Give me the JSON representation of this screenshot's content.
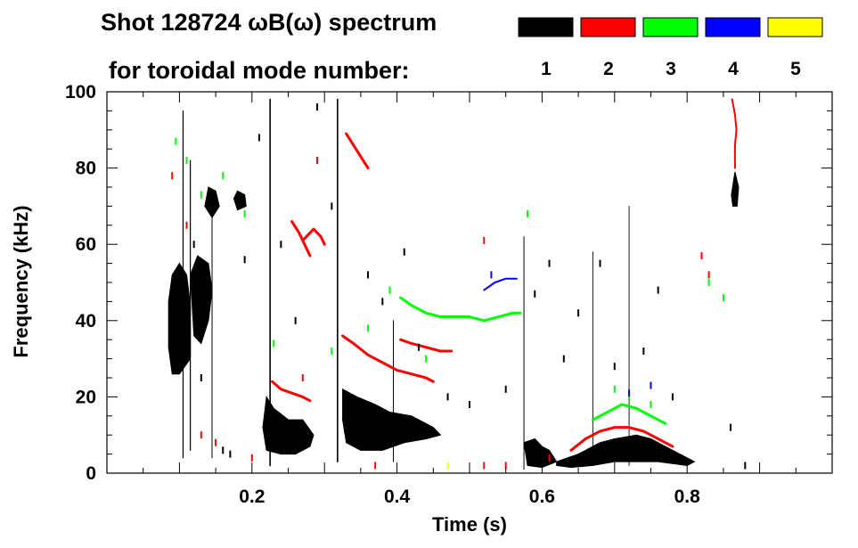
{
  "chart_data": {
    "type": "spectrogram",
    "title_line1": "Shot 128724 ωB(ω) spectrum",
    "title_line2": "for toroidal mode number:",
    "xlabel": "Time (s)",
    "ylabel": "Frequency (kHz)",
    "xlim": [
      0.0,
      1.0
    ],
    "ylim": [
      0,
      100
    ],
    "x_ticks": [
      0.2,
      0.4,
      0.6,
      0.8
    ],
    "x_tick_labels": [
      "0.2",
      "0.4",
      "0.6",
      "0.8"
    ],
    "y_ticks": [
      0,
      20,
      40,
      60,
      80,
      100
    ],
    "y_tick_labels": [
      "0",
      "20",
      "40",
      "60",
      "80",
      "100"
    ],
    "legend": [
      {
        "mode": "1",
        "color": "#000000"
      },
      {
        "mode": "2",
        "color": "#ff0000"
      },
      {
        "mode": "3",
        "color": "#00ff00"
      },
      {
        "mode": "4",
        "color": "#0000ff"
      },
      {
        "mode": "5",
        "color": "#ffff00"
      }
    ],
    "filled_regions": [
      {
        "mode": "1",
        "points": [
          [
            0.085,
            45
          ],
          [
            0.09,
            52
          ],
          [
            0.1,
            55
          ],
          [
            0.11,
            52
          ],
          [
            0.115,
            44
          ],
          [
            0.115,
            30
          ],
          [
            0.1,
            26
          ],
          [
            0.09,
            26
          ],
          [
            0.085,
            33
          ]
        ]
      },
      {
        "mode": "1",
        "points": [
          [
            0.115,
            52
          ],
          [
            0.125,
            57
          ],
          [
            0.14,
            55
          ],
          [
            0.145,
            48
          ],
          [
            0.14,
            40
          ],
          [
            0.13,
            34
          ],
          [
            0.12,
            36
          ]
        ]
      },
      {
        "mode": "1",
        "points": [
          [
            0.135,
            70
          ],
          [
            0.14,
            75
          ],
          [
            0.15,
            74
          ],
          [
            0.155,
            70
          ],
          [
            0.145,
            67
          ]
        ]
      },
      {
        "mode": "1",
        "points": [
          [
            0.175,
            72
          ],
          [
            0.18,
            74
          ],
          [
            0.19,
            73
          ],
          [
            0.192,
            70
          ],
          [
            0.18,
            69
          ]
        ]
      },
      {
        "mode": "1",
        "points": [
          [
            0.22,
            20
          ],
          [
            0.23,
            17
          ],
          [
            0.25,
            14
          ],
          [
            0.27,
            14
          ],
          [
            0.285,
            10
          ],
          [
            0.28,
            7
          ],
          [
            0.26,
            5
          ],
          [
            0.24,
            5
          ],
          [
            0.22,
            6
          ],
          [
            0.215,
            12
          ]
        ]
      },
      {
        "mode": "1",
        "points": [
          [
            0.325,
            22
          ],
          [
            0.345,
            20
          ],
          [
            0.37,
            18
          ],
          [
            0.39,
            16
          ],
          [
            0.42,
            15
          ],
          [
            0.45,
            12
          ],
          [
            0.46,
            10
          ],
          [
            0.44,
            9
          ],
          [
            0.41,
            8
          ],
          [
            0.38,
            6
          ],
          [
            0.35,
            6
          ],
          [
            0.33,
            8
          ],
          [
            0.325,
            14
          ]
        ]
      },
      {
        "mode": "1",
        "points": [
          [
            0.575,
            8
          ],
          [
            0.59,
            9
          ],
          [
            0.6,
            7
          ],
          [
            0.61,
            6
          ],
          [
            0.62,
            3
          ],
          [
            0.6,
            1.5
          ],
          [
            0.58,
            2
          ]
        ]
      },
      {
        "mode": "1",
        "points": [
          [
            0.62,
            3
          ],
          [
            0.65,
            5
          ],
          [
            0.68,
            8
          ],
          [
            0.7,
            9
          ],
          [
            0.73,
            10
          ],
          [
            0.75,
            9
          ],
          [
            0.77,
            7
          ],
          [
            0.79,
            5
          ],
          [
            0.81,
            3
          ],
          [
            0.8,
            2
          ],
          [
            0.76,
            3
          ],
          [
            0.73,
            3
          ],
          [
            0.7,
            3
          ],
          [
            0.67,
            2
          ],
          [
            0.64,
            1.5
          ],
          [
            0.62,
            2
          ]
        ]
      },
      {
        "mode": "1",
        "points": [
          [
            0.861,
            73
          ],
          [
            0.866,
            79
          ],
          [
            0.871,
            75
          ],
          [
            0.869,
            70
          ],
          [
            0.863,
            70
          ]
        ]
      }
    ],
    "traces": [
      {
        "mode": "1",
        "width": 1.6,
        "points": [
          [
            0.225,
            2
          ],
          [
            0.225,
            98
          ]
        ]
      },
      {
        "mode": "1",
        "width": 1.6,
        "points": [
          [
            0.318,
            3
          ],
          [
            0.318,
            98
          ]
        ]
      },
      {
        "mode": "1",
        "width": 1.2,
        "points": [
          [
            0.105,
            4
          ],
          [
            0.105,
            95
          ]
        ]
      },
      {
        "mode": "1",
        "width": 1.2,
        "points": [
          [
            0.115,
            6
          ],
          [
            0.115,
            82
          ]
        ]
      },
      {
        "mode": "1",
        "width": 1.0,
        "points": [
          [
            0.145,
            4
          ],
          [
            0.145,
            68
          ]
        ]
      },
      {
        "mode": "1",
        "width": 1.0,
        "points": [
          [
            0.395,
            3
          ],
          [
            0.395,
            40
          ]
        ]
      },
      {
        "mode": "1",
        "width": 1.0,
        "points": [
          [
            0.575,
            1
          ],
          [
            0.575,
            62
          ]
        ]
      },
      {
        "mode": "1",
        "width": 0.9,
        "points": [
          [
            0.67,
            2
          ],
          [
            0.67,
            58
          ]
        ]
      },
      {
        "mode": "1",
        "width": 0.9,
        "points": [
          [
            0.72,
            2
          ],
          [
            0.72,
            70
          ]
        ]
      },
      {
        "mode": "2",
        "width": 3,
        "points": [
          [
            0.255,
            66
          ],
          [
            0.265,
            63
          ],
          [
            0.275,
            59
          ],
          [
            0.28,
            57
          ]
        ]
      },
      {
        "mode": "2",
        "width": 3,
        "points": [
          [
            0.27,
            61
          ],
          [
            0.285,
            64
          ],
          [
            0.295,
            62
          ],
          [
            0.3,
            60
          ]
        ]
      },
      {
        "mode": "2",
        "width": 3,
        "points": [
          [
            0.228,
            24
          ],
          [
            0.24,
            22
          ],
          [
            0.255,
            21
          ],
          [
            0.27,
            20
          ],
          [
            0.28,
            19
          ]
        ]
      },
      {
        "mode": "2",
        "width": 3,
        "points": [
          [
            0.325,
            36
          ],
          [
            0.34,
            34
          ],
          [
            0.36,
            31
          ],
          [
            0.38,
            29
          ],
          [
            0.4,
            27
          ],
          [
            0.42,
            26
          ],
          [
            0.44,
            25
          ],
          [
            0.45,
            24
          ]
        ]
      },
      {
        "mode": "2",
        "width": 3,
        "points": [
          [
            0.33,
            89
          ],
          [
            0.34,
            86
          ],
          [
            0.35,
            83
          ],
          [
            0.36,
            80
          ]
        ]
      },
      {
        "mode": "2",
        "width": 3,
        "points": [
          [
            0.405,
            35
          ],
          [
            0.42,
            34
          ],
          [
            0.44,
            33
          ],
          [
            0.46,
            32
          ],
          [
            0.475,
            32
          ]
        ]
      },
      {
        "mode": "2",
        "width": 3,
        "points": [
          [
            0.64,
            6
          ],
          [
            0.66,
            9
          ],
          [
            0.68,
            11
          ],
          [
            0.7,
            12
          ],
          [
            0.72,
            12
          ],
          [
            0.74,
            11
          ],
          [
            0.76,
            9
          ],
          [
            0.78,
            7
          ]
        ]
      },
      {
        "mode": "2",
        "width": 2,
        "points": [
          [
            0.862,
            98
          ],
          [
            0.866,
            94
          ],
          [
            0.868,
            90
          ],
          [
            0.866,
            86
          ],
          [
            0.866,
            80
          ]
        ]
      },
      {
        "mode": "3",
        "width": 3,
        "points": [
          [
            0.405,
            46
          ],
          [
            0.42,
            44
          ],
          [
            0.44,
            42
          ],
          [
            0.46,
            41
          ],
          [
            0.48,
            41
          ],
          [
            0.5,
            41
          ],
          [
            0.52,
            40
          ],
          [
            0.54,
            41
          ],
          [
            0.56,
            42
          ],
          [
            0.57,
            42
          ]
        ]
      },
      {
        "mode": "3",
        "width": 3,
        "points": [
          [
            0.67,
            14
          ],
          [
            0.69,
            16
          ],
          [
            0.71,
            18
          ],
          [
            0.73,
            17
          ],
          [
            0.75,
            15
          ],
          [
            0.77,
            13
          ]
        ]
      },
      {
        "mode": "4",
        "width": 2,
        "points": [
          [
            0.52,
            48
          ],
          [
            0.535,
            50
          ],
          [
            0.55,
            51
          ],
          [
            0.565,
            51
          ]
        ]
      }
    ],
    "dashes": [
      {
        "mode": "1",
        "points": [
          [
            0.1,
            48
          ],
          [
            0.12,
            60
          ],
          [
            0.13,
            25
          ],
          [
            0.16,
            6
          ],
          [
            0.17,
            5
          ],
          [
            0.19,
            56
          ],
          [
            0.21,
            88
          ],
          [
            0.24,
            60
          ],
          [
            0.26,
            40
          ],
          [
            0.29,
            96
          ],
          [
            0.31,
            70
          ],
          [
            0.36,
            52
          ],
          [
            0.38,
            45
          ],
          [
            0.41,
            58
          ],
          [
            0.43,
            33
          ],
          [
            0.47,
            20
          ],
          [
            0.5,
            18
          ],
          [
            0.55,
            22
          ],
          [
            0.59,
            47
          ],
          [
            0.61,
            55
          ],
          [
            0.63,
            30
          ],
          [
            0.65,
            42
          ],
          [
            0.68,
            55
          ],
          [
            0.7,
            28
          ],
          [
            0.74,
            32
          ],
          [
            0.76,
            48
          ],
          [
            0.78,
            20
          ],
          [
            0.86,
            12
          ],
          [
            0.88,
            2
          ]
        ]
      },
      {
        "mode": "2",
        "points": [
          [
            0.09,
            78
          ],
          [
            0.11,
            65
          ],
          [
            0.13,
            10
          ],
          [
            0.15,
            8
          ],
          [
            0.2,
            4
          ],
          [
            0.27,
            25
          ],
          [
            0.29,
            82
          ],
          [
            0.37,
            2
          ],
          [
            0.52,
            2
          ],
          [
            0.55,
            2
          ],
          [
            0.52,
            61
          ],
          [
            0.61,
            4
          ],
          [
            0.82,
            57
          ],
          [
            0.83,
            52
          ]
        ]
      },
      {
        "mode": "3",
        "points": [
          [
            0.095,
            87
          ],
          [
            0.11,
            82
          ],
          [
            0.13,
            73
          ],
          [
            0.16,
            78
          ],
          [
            0.19,
            68
          ],
          [
            0.23,
            34
          ],
          [
            0.31,
            32
          ],
          [
            0.36,
            38
          ],
          [
            0.39,
            48
          ],
          [
            0.44,
            30
          ],
          [
            0.58,
            68
          ],
          [
            0.7,
            22
          ],
          [
            0.72,
            20
          ],
          [
            0.75,
            18
          ],
          [
            0.83,
            50
          ],
          [
            0.85,
            46
          ]
        ]
      },
      {
        "mode": "4",
        "points": [
          [
            0.53,
            52
          ],
          [
            0.72,
            21
          ],
          [
            0.75,
            23
          ]
        ]
      },
      {
        "mode": "5",
        "points": [
          [
            0.47,
            2
          ]
        ]
      }
    ]
  }
}
